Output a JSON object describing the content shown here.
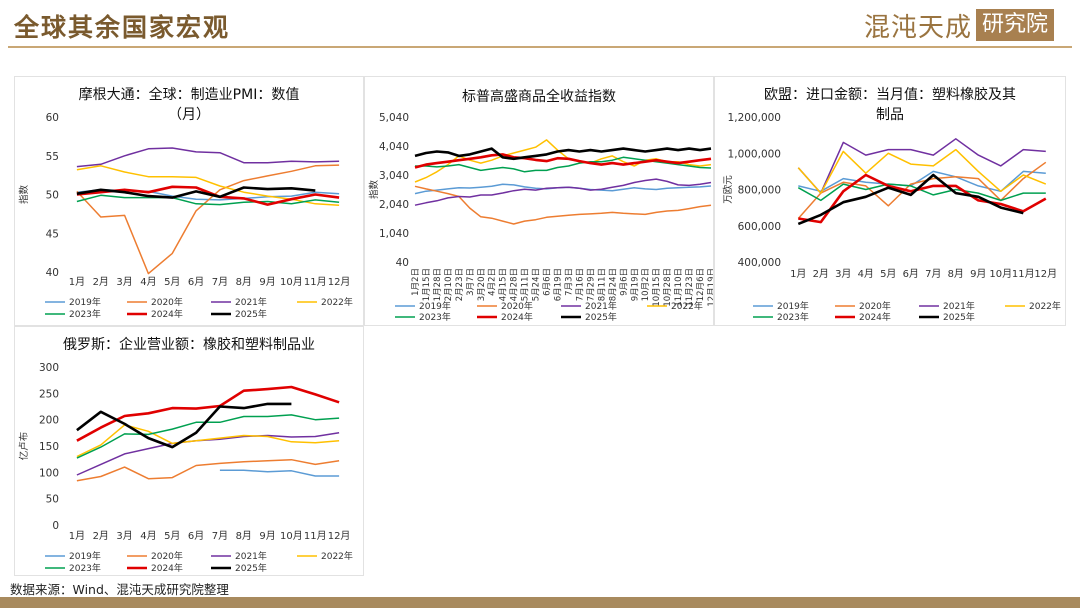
{
  "page": {
    "title": "全球其余国家宏观",
    "logo_text": "混沌天成",
    "logo_box": "研究院",
    "source": "数据来源：Wind、混沌天成研究院整理"
  },
  "colors": {
    "2019年": "#5b9bd5",
    "2020年": "#ed7d31",
    "2021年": "#7030a0",
    "2022年": "#ffc000",
    "2023年": "#00a050",
    "2024年": "#e00000",
    "2025年": "#000000"
  },
  "chart_data": [
    {
      "id": "pmi",
      "type": "line",
      "title": "摩根大通：全球：制造业PMI：数值（月）",
      "title_lines": [
        "摩根大通：全球：制造业PMI：数值",
        "（月）"
      ],
      "ylabel": "指数",
      "categories": [
        "1月",
        "2月",
        "3月",
        "4月",
        "5月",
        "6月",
        "7月",
        "8月",
        "9月",
        "10月",
        "11月",
        "12月"
      ],
      "ylim": [
        40,
        60
      ],
      "yticks": [
        "40",
        "45",
        "50",
        "55",
        "60"
      ],
      "ytick_values": [
        40,
        45,
        50,
        55,
        60
      ],
      "legend_rows": [
        [
          "2019年",
          "2020年",
          "2021年",
          "2022年"
        ],
        [
          "2023年",
          "2024年",
          "2025年"
        ]
      ],
      "series": [
        {
          "name": "2019年",
          "values": [
            50.3,
            50.6,
            50.5,
            50.4,
            49.8,
            49.4,
            49.3,
            49.5,
            49.7,
            49.8,
            50.3,
            50.1
          ]
        },
        {
          "name": "2020年",
          "values": [
            50.4,
            47.1,
            47.3,
            39.8,
            42.4,
            47.9,
            50.6,
            51.8,
            52.4,
            53.0,
            53.7,
            53.8
          ]
        },
        {
          "name": "2021年",
          "values": [
            53.6,
            53.9,
            55.0,
            55.9,
            56.0,
            55.5,
            55.4,
            54.1,
            54.1,
            54.3,
            54.2,
            54.3
          ]
        },
        {
          "name": "2022年",
          "values": [
            53.2,
            53.7,
            52.9,
            52.3,
            52.3,
            52.2,
            51.1,
            50.3,
            49.8,
            49.4,
            48.8,
            48.6
          ]
        },
        {
          "name": "2023年",
          "values": [
            49.1,
            49.9,
            49.6,
            49.6,
            49.6,
            48.8,
            48.7,
            49.0,
            49.1,
            48.8,
            49.3,
            49.0
          ]
        },
        {
          "name": "2024年",
          "values": [
            50.0,
            50.3,
            50.6,
            50.3,
            51.0,
            50.9,
            49.7,
            49.5,
            48.7,
            49.4,
            50.0,
            49.6
          ]
        },
        {
          "name": "2025年",
          "values": [
            50.1,
            50.6,
            50.3,
            49.8,
            49.6,
            50.4,
            49.7,
            50.9,
            50.7,
            50.8,
            50.5,
            null
          ]
        }
      ]
    },
    {
      "id": "sp_gsci",
      "type": "line",
      "title": "标普高盛商品全收益指数",
      "title_lines": [
        "标普高盛商品全收益指数"
      ],
      "ylabel": "指数",
      "ylim": [
        40,
        5040
      ],
      "yticks": [
        "40",
        "1,040",
        "2,040",
        "3,040",
        "4,040",
        "5,040"
      ],
      "ytick_values": [
        40,
        1040,
        2040,
        3040,
        4040,
        5040
      ],
      "x_ticks": [
        "1月2日",
        "1月15日",
        "1月28日",
        "2月10日",
        "2月23日",
        "3月7日",
        "3月20日",
        "4月2日",
        "4月15日",
        "4月28日",
        "5月11日",
        "5月24日",
        "6月6日",
        "6月19日",
        "7月3日",
        "7月16日",
        "7月29日",
        "8月11日",
        "8月24日",
        "9月6日",
        "9月19日",
        "10月2日",
        "10月15日",
        "10月28日",
        "11月10日",
        "11月23日",
        "12月6日",
        "12月19日"
      ],
      "legend_rows": [
        [
          "2019年",
          "2020年",
          "2021年",
          "2022年"
        ],
        [
          "2023年",
          "2024年",
          "2025年"
        ]
      ],
      "series": [
        {
          "name": "2019年",
          "values": [
            2400,
            2480,
            2520,
            2560,
            2600,
            2590,
            2620,
            2650,
            2720,
            2700,
            2630,
            2580,
            2560,
            2600,
            2620,
            2580,
            2540,
            2520,
            2500,
            2550,
            2600,
            2560,
            2540,
            2580,
            2600,
            2620,
            2630,
            2660
          ]
        },
        {
          "name": "2020年",
          "values": [
            2650,
            2560,
            2480,
            2400,
            2300,
            1900,
            1600,
            1550,
            1450,
            1350,
            1450,
            1500,
            1580,
            1620,
            1650,
            1680,
            1700,
            1720,
            1750,
            1720,
            1700,
            1680,
            1750,
            1800,
            1820,
            1880,
            1950,
            2000
          ]
        },
        {
          "name": "2021年",
          "values": [
            2000,
            2080,
            2150,
            2250,
            2300,
            2280,
            2350,
            2350,
            2420,
            2500,
            2550,
            2520,
            2580,
            2600,
            2620,
            2580,
            2520,
            2550,
            2620,
            2680,
            2780,
            2850,
            2900,
            2820,
            2700,
            2680,
            2720,
            2780
          ]
        },
        {
          "name": "2022年",
          "values": [
            2800,
            2950,
            3150,
            3400,
            3700,
            3550,
            3450,
            3550,
            3700,
            3800,
            3900,
            4000,
            4250,
            3900,
            3600,
            3500,
            3450,
            3600,
            3700,
            3500,
            3350,
            3550,
            3600,
            3500,
            3500,
            3400,
            3350,
            3400
          ]
        },
        {
          "name": "2023年",
          "values": [
            3350,
            3350,
            3320,
            3350,
            3400,
            3300,
            3200,
            3250,
            3300,
            3250,
            3150,
            3200,
            3200,
            3300,
            3350,
            3450,
            3500,
            3500,
            3550,
            3650,
            3600,
            3550,
            3500,
            3450,
            3400,
            3350,
            3300,
            3280
          ]
        },
        {
          "name": "2024年",
          "values": [
            3300,
            3400,
            3450,
            3500,
            3550,
            3600,
            3650,
            3720,
            3750,
            3650,
            3620,
            3560,
            3520,
            3620,
            3600,
            3520,
            3450,
            3400,
            3450,
            3400,
            3450,
            3500,
            3550,
            3500,
            3450,
            3500,
            3550,
            3600
          ]
        },
        {
          "name": "2025年",
          "values": [
            3700,
            3800,
            3850,
            3820,
            3700,
            3750,
            3850,
            3950,
            3650,
            3600,
            3650,
            3700,
            3750,
            3850,
            3900,
            3850,
            3900,
            3850,
            3900,
            3950,
            3900,
            3850,
            3900,
            3950,
            3900,
            3950,
            3900,
            3950
          ]
        }
      ]
    },
    {
      "id": "eu_imports",
      "type": "line",
      "title": "欧盟：进口金额：当月值：塑料橡胶及其制品",
      "title_lines": [
        "欧盟：进口金额：当月值：塑料橡胶及其",
        "制品"
      ],
      "ylabel": "万欧元",
      "categories": [
        "1月",
        "2月",
        "3月",
        "4月",
        "5月",
        "6月",
        "7月",
        "8月",
        "9月",
        "10月",
        "11月",
        "12月"
      ],
      "ylim": [
        400000,
        1200000
      ],
      "yticks": [
        "400,000",
        "600,000",
        "800,000",
        "1,000,000",
        "1,200,000"
      ],
      "ytick_values": [
        400000,
        600000,
        800000,
        1000000,
        1200000
      ],
      "legend_rows": [
        [
          "2019年",
          "2020年",
          "2021年",
          "2022年"
        ],
        [
          "2023年",
          "2024年",
          "2025年"
        ]
      ],
      "series": [
        {
          "name": "2019年",
          "values": [
            820,
            790,
            860,
            840,
            830,
            820,
            900,
            870,
            820,
            790,
            900,
            890
          ]
        },
        {
          "name": "2020年",
          "values": [
            640,
            780,
            840,
            820,
            710,
            830,
            860,
            870,
            860,
            740,
            860,
            950
          ]
        },
        {
          "name": "2021年",
          "values": [
            920,
            780,
            1060,
            990,
            1020,
            1020,
            990,
            1080,
            990,
            930,
            1020,
            1010
          ]
        },
        {
          "name": "2022年",
          "values": [
            920,
            780,
            1010,
            890,
            1000,
            940,
            930,
            1020,
            900,
            790,
            880,
            830
          ]
        },
        {
          "name": "2023年",
          "values": [
            810,
            740,
            830,
            800,
            830,
            820,
            770,
            800,
            780,
            740,
            780,
            780
          ]
        },
        {
          "name": "2024年",
          "values": [
            640,
            620,
            790,
            880,
            820,
            790,
            820,
            820,
            740,
            720,
            680,
            750
          ]
        },
        {
          "name": "2025年",
          "values": [
            610,
            660,
            730,
            760,
            810,
            770,
            880,
            780,
            760,
            700,
            670,
            null
          ]
        }
      ],
      "value_scale": 1000
    },
    {
      "id": "ru_revenue",
      "type": "line",
      "title": "俄罗斯：企业营业额：橡胶和塑料制品业",
      "title_lines": [
        "俄罗斯：企业营业额：橡胶和塑料制品业"
      ],
      "ylabel": "亿卢布",
      "categories": [
        "1月",
        "2月",
        "3月",
        "4月",
        "5月",
        "6月",
        "7月",
        "8月",
        "9月",
        "10月",
        "11月",
        "12月"
      ],
      "ylim": [
        0,
        300
      ],
      "yticks": [
        "0",
        "50",
        "100",
        "150",
        "200",
        "250",
        "300"
      ],
      "ytick_values": [
        0,
        50,
        100,
        150,
        200,
        250,
        300
      ],
      "legend_rows": [
        [
          "2019年",
          "2020年",
          "2021年",
          "2022年"
        ],
        [
          "2023年",
          "2024年",
          "2025年"
        ]
      ],
      "series": [
        {
          "name": "2019年",
          "values": [
            null,
            null,
            null,
            null,
            null,
            null,
            104,
            104,
            101,
            103,
            93,
            93
          ]
        },
        {
          "name": "2020年",
          "values": [
            84,
            92,
            110,
            88,
            90,
            113,
            117,
            120,
            122,
            124,
            115,
            122
          ]
        },
        {
          "name": "2021年",
          "values": [
            95,
            115,
            135,
            145,
            155,
            160,
            163,
            168,
            170,
            167,
            168,
            175
          ]
        },
        {
          "name": "2022年",
          "values": [
            130,
            152,
            190,
            178,
            155,
            160,
            165,
            170,
            168,
            158,
            156,
            160
          ]
        },
        {
          "name": "2023年",
          "values": [
            127,
            148,
            173,
            172,
            182,
            195,
            195,
            206,
            206,
            209,
            200,
            203
          ]
        },
        {
          "name": "2024年",
          "values": [
            160,
            185,
            207,
            212,
            222,
            221,
            226,
            255,
            258,
            262,
            248,
            233
          ]
        },
        {
          "name": "2025年",
          "values": [
            180,
            215,
            192,
            165,
            148,
            175,
            225,
            222,
            230,
            230,
            null,
            null
          ]
        }
      ]
    }
  ]
}
